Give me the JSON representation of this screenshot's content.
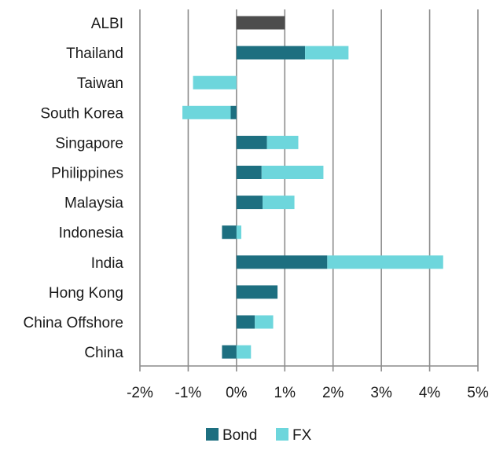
{
  "chart_data": {
    "type": "bar",
    "orientation": "horizontal",
    "stacked": true,
    "categories": [
      "ALBI",
      "Thailand",
      "Taiwan",
      "South Korea",
      "Singapore",
      "Philippines",
      "Malaysia",
      "Indonesia",
      "India",
      "Hong Kong",
      "China Offshore",
      "China"
    ],
    "series": [
      {
        "name": "Bond",
        "color": "#1d6f80",
        "values": [
          1.0,
          1.42,
          0.0,
          -0.12,
          0.63,
          0.52,
          0.54,
          -0.3,
          1.88,
          0.85,
          0.38,
          -0.3
        ]
      },
      {
        "name": "FX",
        "color": "#6dd6dc",
        "values": [
          0.0,
          0.9,
          -0.9,
          -1.0,
          0.65,
          1.28,
          0.66,
          0.1,
          2.4,
          0.0,
          0.38,
          0.3
        ]
      }
    ],
    "highlight": {
      "category": "ALBI",
      "color": "#4d4d4d"
    },
    "xlim": [
      -2,
      5
    ],
    "xticks": [
      -2,
      -1,
      0,
      1,
      2,
      3,
      4,
      5
    ],
    "xtick_labels": [
      "-2%",
      "-1%",
      "0%",
      "1%",
      "2%",
      "3%",
      "4%",
      "5%"
    ],
    "grid": "vertical",
    "legend_position": "bottom",
    "title": "",
    "xlabel": "",
    "ylabel": ""
  }
}
